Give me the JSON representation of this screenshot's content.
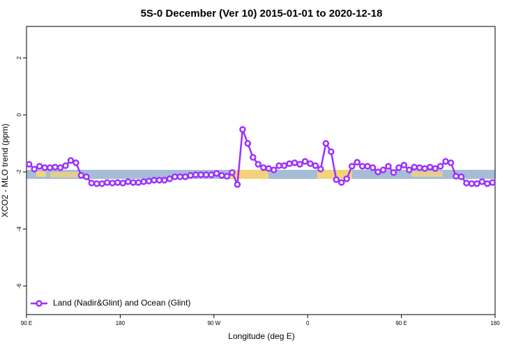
{
  "chart_data": {
    "type": "line",
    "title": "5S-0 December (Ver 10)   2015-01-01 to 2020-12-18",
    "x_label": "Longitude (deg E)",
    "y_label": "XCO2 - MLO trend (ppm)",
    "legend_position": "bottom-left",
    "xlim": [
      90,
      540
    ],
    "xticks": [
      {
        "value": 90,
        "label": "90 E"
      },
      {
        "value": 180,
        "label": "180"
      },
      {
        "value": 270,
        "label": "90 W"
      },
      {
        "value": 360,
        "label": "0"
      },
      {
        "value": 450,
        "label": "90 E"
      },
      {
        "value": 540,
        "label": "180"
      }
    ],
    "ylim": [
      -7,
      3.1
    ],
    "yticks": [
      -6,
      -4,
      -2,
      0,
      2
    ],
    "x": [
      92.5,
      97.5,
      102.5,
      107.5,
      112.5,
      117.5,
      122.5,
      127.5,
      132.5,
      137.5,
      142.5,
      147.5,
      152.5,
      157.5,
      162.5,
      167.5,
      172.5,
      177.5,
      182.5,
      187.5,
      192.5,
      197.5,
      202.5,
      207.5,
      212.5,
      217.5,
      222.5,
      227.5,
      232.5,
      237.5,
      242.5,
      247.5,
      252.5,
      257.5,
      262.5,
      267.5,
      272.5,
      277.5,
      282.5,
      287.5,
      292.5,
      297.5,
      302.5,
      307.5,
      312.5,
      317.5,
      322.5,
      327.5,
      332.5,
      337.5,
      342.5,
      347.5,
      352.5,
      357.5,
      362.5,
      367.5,
      372.5,
      377.5,
      382.5,
      387.5,
      392.5,
      397.5,
      402.5,
      407.5,
      412.5,
      417.5,
      422.5,
      427.5,
      432.5,
      437.5,
      442.5,
      447.5,
      452.5,
      457.5,
      462.5,
      467.5,
      472.5,
      477.5,
      482.5,
      487.5,
      492.5,
      497.5,
      502.5,
      507.5,
      512.5,
      517.5,
      522.5,
      527.5,
      532.5,
      537.5
    ],
    "series": [
      {
        "name": "Land (Nadir&Glint) and Ocean (Glint)",
        "color": "#9b30ff",
        "values": [
          -1.73,
          -1.9,
          -1.8,
          -1.85,
          -1.85,
          -1.83,
          -1.85,
          -1.78,
          -1.6,
          -1.68,
          -2.12,
          -2.17,
          -2.39,
          -2.41,
          -2.41,
          -2.37,
          -2.39,
          -2.37,
          -2.39,
          -2.34,
          -2.37,
          -2.37,
          -2.34,
          -2.32,
          -2.29,
          -2.29,
          -2.29,
          -2.24,
          -2.17,
          -2.17,
          -2.17,
          -2.12,
          -2.1,
          -2.1,
          -2.1,
          -2.1,
          -2.05,
          -2.12,
          -2.15,
          -2.02,
          -2.44,
          -0.51,
          -1.0,
          -1.49,
          -1.73,
          -1.85,
          -1.88,
          -1.93,
          -1.78,
          -1.78,
          -1.71,
          -1.68,
          -1.73,
          -1.63,
          -1.71,
          -1.78,
          -1.9,
          -1.0,
          -1.29,
          -2.27,
          -2.37,
          -2.24,
          -1.8,
          -1.66,
          -1.8,
          -1.8,
          -1.85,
          -2.0,
          -1.93,
          -1.8,
          -2.02,
          -1.85,
          -1.76,
          -1.93,
          -1.83,
          -1.85,
          -1.88,
          -1.83,
          -1.88,
          -1.8,
          -1.63,
          -1.68,
          -2.15,
          -2.17,
          -2.39,
          -2.41,
          -2.41,
          -2.34,
          -2.41,
          -2.37
        ]
      }
    ]
  }
}
